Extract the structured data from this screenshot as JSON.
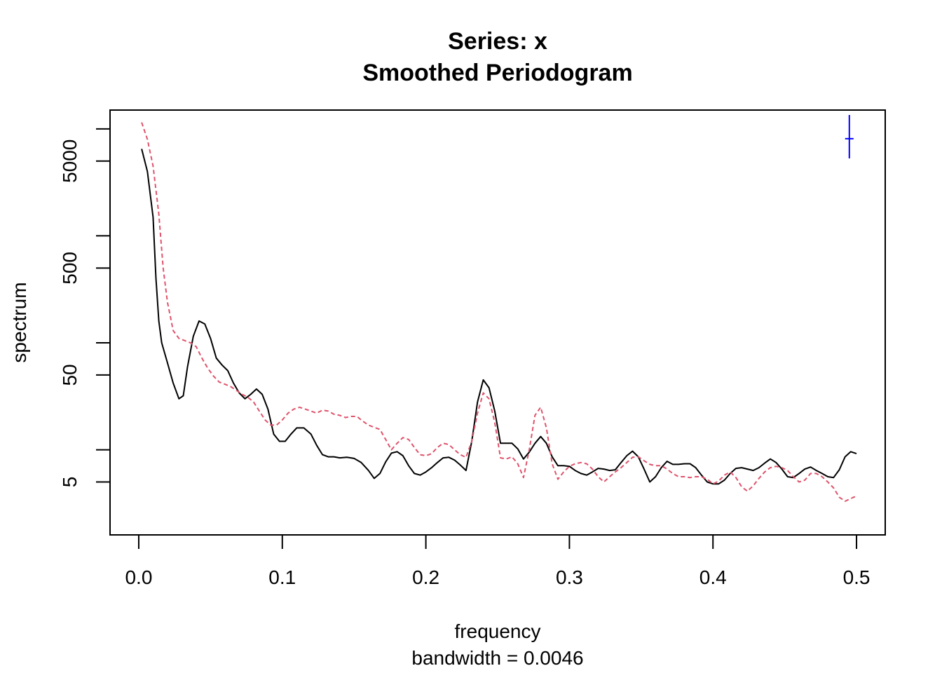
{
  "chart_data": {
    "type": "line",
    "title": "Series: x",
    "subtitle": "Smoothed Periodogram",
    "xlabel": "frequency",
    "xlabel_note": "bandwidth = 0.0046",
    "ylabel": "spectrum",
    "y_scale": "log",
    "xlim": [
      -0.02,
      0.52
    ],
    "ylim": [
      1.6,
      15000
    ],
    "x_ticks": [
      {
        "value": 0.0,
        "label": "0.0"
      },
      {
        "value": 0.1,
        "label": "0.1"
      },
      {
        "value": 0.2,
        "label": "0.2"
      },
      {
        "value": 0.3,
        "label": "0.3"
      },
      {
        "value": 0.4,
        "label": "0.4"
      },
      {
        "value": 0.5,
        "label": "0.5"
      }
    ],
    "y_ticks_major": [
      {
        "value": 5,
        "label": "5"
      },
      {
        "value": 50,
        "label": "50"
      },
      {
        "value": 500,
        "label": "500"
      },
      {
        "value": 5000,
        "label": "5000"
      }
    ],
    "y_ticks_minor": [
      10,
      100,
      1000,
      10000
    ],
    "grid": false,
    "legend": "none",
    "series": [
      {
        "color": "#000000",
        "dash": "solid",
        "points": [
          [
            0.002,
            6500
          ],
          [
            0.006,
            4000
          ],
          [
            0.01,
            1500
          ],
          [
            0.012,
            400
          ],
          [
            0.014,
            160
          ],
          [
            0.016,
            100
          ],
          [
            0.02,
            65
          ],
          [
            0.024,
            42
          ],
          [
            0.028,
            30
          ],
          [
            0.031,
            32
          ],
          [
            0.034,
            60
          ],
          [
            0.038,
            115
          ],
          [
            0.042,
            160
          ],
          [
            0.046,
            150
          ],
          [
            0.05,
            110
          ],
          [
            0.054,
            72
          ],
          [
            0.058,
            62
          ],
          [
            0.062,
            55
          ],
          [
            0.066,
            42
          ],
          [
            0.07,
            34
          ],
          [
            0.074,
            30
          ],
          [
            0.078,
            33
          ],
          [
            0.082,
            37
          ],
          [
            0.086,
            33
          ],
          [
            0.09,
            24
          ],
          [
            0.094,
            14
          ],
          [
            0.098,
            12
          ],
          [
            0.102,
            12
          ],
          [
            0.106,
            14
          ],
          [
            0.11,
            16
          ],
          [
            0.115,
            16
          ],
          [
            0.12,
            14
          ],
          [
            0.124,
            11
          ],
          [
            0.128,
            9
          ],
          [
            0.132,
            8.6
          ],
          [
            0.136,
            8.6
          ],
          [
            0.14,
            8.4
          ],
          [
            0.145,
            8.5
          ],
          [
            0.15,
            8.3
          ],
          [
            0.155,
            7.6
          ],
          [
            0.16,
            6.4
          ],
          [
            0.164,
            5.4
          ],
          [
            0.168,
            6.0
          ],
          [
            0.172,
            7.7
          ],
          [
            0.176,
            9.3
          ],
          [
            0.18,
            9.6
          ],
          [
            0.184,
            8.8
          ],
          [
            0.188,
            7.1
          ],
          [
            0.192,
            6.0
          ],
          [
            0.196,
            5.8
          ],
          [
            0.2,
            6.2
          ],
          [
            0.204,
            6.8
          ],
          [
            0.208,
            7.6
          ],
          [
            0.212,
            8.4
          ],
          [
            0.216,
            8.5
          ],
          [
            0.22,
            8.0
          ],
          [
            0.224,
            7.2
          ],
          [
            0.228,
            6.4
          ],
          [
            0.232,
            12
          ],
          [
            0.236,
            28
          ],
          [
            0.24,
            45
          ],
          [
            0.244,
            38
          ],
          [
            0.248,
            23
          ],
          [
            0.252,
            11.5
          ],
          [
            0.256,
            11.5
          ],
          [
            0.26,
            11.5
          ],
          [
            0.264,
            10.2
          ],
          [
            0.268,
            8.2
          ],
          [
            0.272,
            9.5
          ],
          [
            0.276,
            11.5
          ],
          [
            0.28,
            13.3
          ],
          [
            0.284,
            11.5
          ],
          [
            0.288,
            8.6
          ],
          [
            0.292,
            7.1
          ],
          [
            0.296,
            7.1
          ],
          [
            0.3,
            7.0
          ],
          [
            0.304,
            6.4
          ],
          [
            0.308,
            6.0
          ],
          [
            0.312,
            5.8
          ],
          [
            0.316,
            6.2
          ],
          [
            0.32,
            6.7
          ],
          [
            0.324,
            6.6
          ],
          [
            0.328,
            6.4
          ],
          [
            0.332,
            6.5
          ],
          [
            0.336,
            7.6
          ],
          [
            0.34,
            8.8
          ],
          [
            0.344,
            9.7
          ],
          [
            0.348,
            8.6
          ],
          [
            0.352,
            6.6
          ],
          [
            0.356,
            5.0
          ],
          [
            0.36,
            5.6
          ],
          [
            0.364,
            6.8
          ],
          [
            0.368,
            7.8
          ],
          [
            0.372,
            7.3
          ],
          [
            0.376,
            7.3
          ],
          [
            0.38,
            7.4
          ],
          [
            0.384,
            7.4
          ],
          [
            0.388,
            6.8
          ],
          [
            0.392,
            5.8
          ],
          [
            0.396,
            5.0
          ],
          [
            0.4,
            4.8
          ],
          [
            0.404,
            4.8
          ],
          [
            0.408,
            5.2
          ],
          [
            0.412,
            6.0
          ],
          [
            0.416,
            6.7
          ],
          [
            0.42,
            6.8
          ],
          [
            0.424,
            6.6
          ],
          [
            0.428,
            6.4
          ],
          [
            0.432,
            6.8
          ],
          [
            0.436,
            7.5
          ],
          [
            0.44,
            8.2
          ],
          [
            0.444,
            7.6
          ],
          [
            0.448,
            6.6
          ],
          [
            0.452,
            5.6
          ],
          [
            0.456,
            5.5
          ],
          [
            0.46,
            6.0
          ],
          [
            0.464,
            6.6
          ],
          [
            0.468,
            6.9
          ],
          [
            0.472,
            6.4
          ],
          [
            0.476,
            6.0
          ],
          [
            0.48,
            5.6
          ],
          [
            0.484,
            5.5
          ],
          [
            0.488,
            6.5
          ],
          [
            0.492,
            8.6
          ],
          [
            0.496,
            9.6
          ],
          [
            0.5,
            9.2
          ]
        ]
      },
      {
        "color": "#DF536B",
        "dash": "dashed",
        "points": [
          [
            0.002,
            11500
          ],
          [
            0.006,
            8000
          ],
          [
            0.01,
            4500
          ],
          [
            0.014,
            1600
          ],
          [
            0.017,
            500
          ],
          [
            0.02,
            240
          ],
          [
            0.024,
            130
          ],
          [
            0.028,
            110
          ],
          [
            0.032,
            105
          ],
          [
            0.036,
            100
          ],
          [
            0.04,
            92
          ],
          [
            0.044,
            72
          ],
          [
            0.048,
            58
          ],
          [
            0.052,
            49
          ],
          [
            0.056,
            43
          ],
          [
            0.06,
            41
          ],
          [
            0.064,
            39
          ],
          [
            0.068,
            36
          ],
          [
            0.072,
            33
          ],
          [
            0.076,
            31
          ],
          [
            0.08,
            28
          ],
          [
            0.084,
            23
          ],
          [
            0.088,
            19
          ],
          [
            0.092,
            17
          ],
          [
            0.096,
            17
          ],
          [
            0.1,
            19
          ],
          [
            0.104,
            22
          ],
          [
            0.108,
            24
          ],
          [
            0.112,
            25
          ],
          [
            0.116,
            24
          ],
          [
            0.12,
            23
          ],
          [
            0.124,
            22
          ],
          [
            0.128,
            23.5
          ],
          [
            0.132,
            23
          ],
          [
            0.136,
            21.5
          ],
          [
            0.14,
            21
          ],
          [
            0.144,
            20
          ],
          [
            0.148,
            20.5
          ],
          [
            0.152,
            20.5
          ],
          [
            0.156,
            18.5
          ],
          [
            0.16,
            17
          ],
          [
            0.164,
            16.2
          ],
          [
            0.168,
            15.5
          ],
          [
            0.172,
            12.5
          ],
          [
            0.176,
            10
          ],
          [
            0.18,
            11.5
          ],
          [
            0.184,
            13
          ],
          [
            0.188,
            12.5
          ],
          [
            0.192,
            10.5
          ],
          [
            0.196,
            9.0
          ],
          [
            0.2,
            8.8
          ],
          [
            0.204,
            9.2
          ],
          [
            0.208,
            10.5
          ],
          [
            0.212,
            11.5
          ],
          [
            0.216,
            11.2
          ],
          [
            0.22,
            10
          ],
          [
            0.224,
            9.0
          ],
          [
            0.228,
            8.5
          ],
          [
            0.232,
            12
          ],
          [
            0.236,
            22
          ],
          [
            0.24,
            34
          ],
          [
            0.244,
            30
          ],
          [
            0.248,
            18
          ],
          [
            0.252,
            8.4
          ],
          [
            0.256,
            8.2
          ],
          [
            0.26,
            8.6
          ],
          [
            0.264,
            7.4
          ],
          [
            0.268,
            5.5
          ],
          [
            0.272,
            10
          ],
          [
            0.276,
            21
          ],
          [
            0.28,
            25
          ],
          [
            0.284,
            16
          ],
          [
            0.288,
            7.4
          ],
          [
            0.292,
            5.3
          ],
          [
            0.296,
            6.2
          ],
          [
            0.3,
            7.0
          ],
          [
            0.304,
            7.4
          ],
          [
            0.308,
            7.6
          ],
          [
            0.312,
            7.4
          ],
          [
            0.316,
            6.6
          ],
          [
            0.32,
            5.6
          ],
          [
            0.324,
            5.0
          ],
          [
            0.328,
            5.6
          ],
          [
            0.332,
            6.2
          ],
          [
            0.336,
            6.8
          ],
          [
            0.34,
            7.6
          ],
          [
            0.344,
            8.5
          ],
          [
            0.348,
            8.6
          ],
          [
            0.352,
            7.9
          ],
          [
            0.356,
            7.3
          ],
          [
            0.36,
            7.1
          ],
          [
            0.364,
            7.1
          ],
          [
            0.368,
            6.6
          ],
          [
            0.372,
            6.0
          ],
          [
            0.376,
            5.6
          ],
          [
            0.38,
            5.6
          ],
          [
            0.384,
            5.5
          ],
          [
            0.388,
            5.6
          ],
          [
            0.392,
            5.6
          ],
          [
            0.396,
            5.3
          ],
          [
            0.4,
            4.8
          ],
          [
            0.404,
            5.1
          ],
          [
            0.408,
            5.8
          ],
          [
            0.412,
            6.2
          ],
          [
            0.416,
            5.5
          ],
          [
            0.42,
            4.5
          ],
          [
            0.424,
            4.1
          ],
          [
            0.428,
            4.6
          ],
          [
            0.432,
            5.4
          ],
          [
            0.436,
            6.2
          ],
          [
            0.44,
            6.8
          ],
          [
            0.444,
            7.0
          ],
          [
            0.448,
            6.8
          ],
          [
            0.452,
            6.4
          ],
          [
            0.456,
            5.6
          ],
          [
            0.46,
            5.0
          ],
          [
            0.464,
            5.2
          ],
          [
            0.468,
            6.0
          ],
          [
            0.472,
            6.0
          ],
          [
            0.476,
            5.6
          ],
          [
            0.48,
            5.0
          ],
          [
            0.484,
            4.4
          ],
          [
            0.488,
            3.6
          ],
          [
            0.492,
            3.3
          ],
          [
            0.496,
            3.5
          ],
          [
            0.5,
            3.7
          ]
        ]
      }
    ],
    "ci_bar": {
      "color": "#0000FF",
      "x": 0.495,
      "center": 8100,
      "low": 5300,
      "high": 13500
    }
  }
}
